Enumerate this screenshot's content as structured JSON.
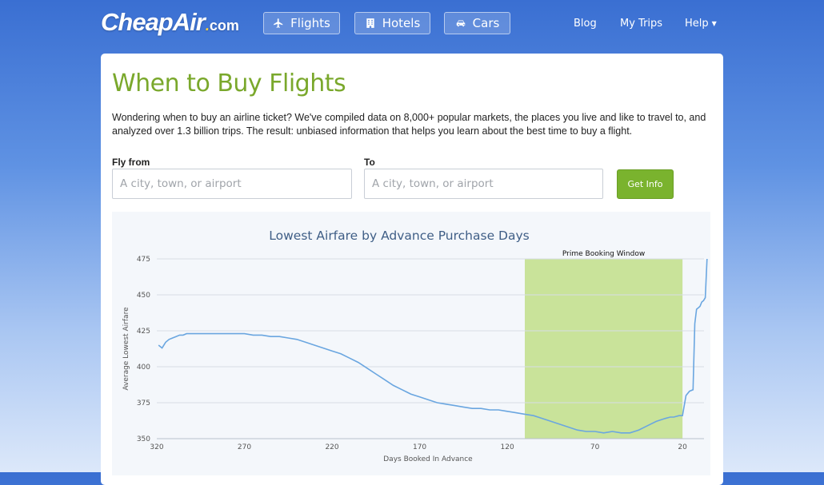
{
  "header": {
    "logo_main": "CheapAir",
    "logo_dot": ".",
    "logo_tld": "com",
    "nav": [
      {
        "label": "Flights",
        "icon": "airplane-icon"
      },
      {
        "label": "Hotels",
        "icon": "building-icon"
      },
      {
        "label": "Cars",
        "icon": "car-icon"
      }
    ],
    "links": {
      "blog": "Blog",
      "trips": "My Trips",
      "help": "Help"
    }
  },
  "page": {
    "title": "When to Buy Flights",
    "description": "Wondering when to buy an airline ticket? We've compiled data on 8,000+ popular markets, the places you live and like to travel to, and analyzed over 1.3 billion trips. The result: unbiased information that helps you learn about the best time to buy a flight."
  },
  "form": {
    "from_label": "Fly from",
    "from_placeholder": "A city, town, or airport",
    "to_label": "To",
    "to_placeholder": "A city, town, or airport",
    "submit_label": "Get Info"
  },
  "colors": {
    "accent_green": "#7aa82c",
    "button_green": "#7ab32e",
    "line_blue": "#6aa6e0",
    "window_green": "#c9e39a"
  },
  "chart_data": {
    "type": "line",
    "title": "Lowest Airfare by Advance Purchase Days",
    "xlabel": "Days Booked In Advance",
    "ylabel": "Average Lowest Airfare",
    "xlim": [
      320,
      5
    ],
    "ylim": [
      350,
      475
    ],
    "x_ticks": [
      320,
      270,
      220,
      170,
      120,
      70,
      20
    ],
    "y_ticks": [
      350,
      375,
      400,
      425,
      450,
      475
    ],
    "grid": true,
    "annotation": {
      "label": "Prime Booking Window",
      "from": 110,
      "to": 20
    },
    "series": [
      {
        "x": [
          319,
          317,
          315,
          313,
          311,
          309,
          307,
          305,
          303,
          300,
          295,
          290,
          285,
          280,
          275,
          270,
          265,
          260,
          255,
          250,
          245,
          240,
          235,
          230,
          225,
          220,
          215,
          210,
          205,
          200,
          195,
          190,
          185,
          180,
          175,
          170,
          165,
          160,
          155,
          150,
          145,
          140,
          135,
          130,
          125,
          120,
          115,
          110,
          105,
          100,
          95,
          90,
          85,
          80,
          75,
          70,
          65,
          60,
          55,
          50,
          45,
          40,
          35,
          30,
          27,
          25,
          22,
          20,
          18,
          16,
          14,
          13,
          12,
          11,
          10,
          9,
          8,
          7,
          6
        ],
        "y": [
          415,
          413,
          417,
          419,
          420,
          421,
          422,
          422,
          423,
          423,
          423,
          423,
          423,
          423,
          423,
          423,
          422,
          422,
          421,
          421,
          420,
          419,
          417,
          415,
          413,
          411,
          409,
          406,
          403,
          399,
          395,
          391,
          387,
          384,
          381,
          379,
          377,
          375,
          374,
          373,
          372,
          371,
          371,
          370,
          370,
          369,
          368,
          367,
          366,
          364,
          362,
          360,
          358,
          356,
          355,
          355,
          354,
          355,
          354,
          354,
          356,
          359,
          362,
          364,
          365,
          365,
          366,
          366,
          380,
          383,
          384,
          430,
          440,
          441,
          442,
          445,
          446,
          448,
          475
        ]
      }
    ]
  }
}
